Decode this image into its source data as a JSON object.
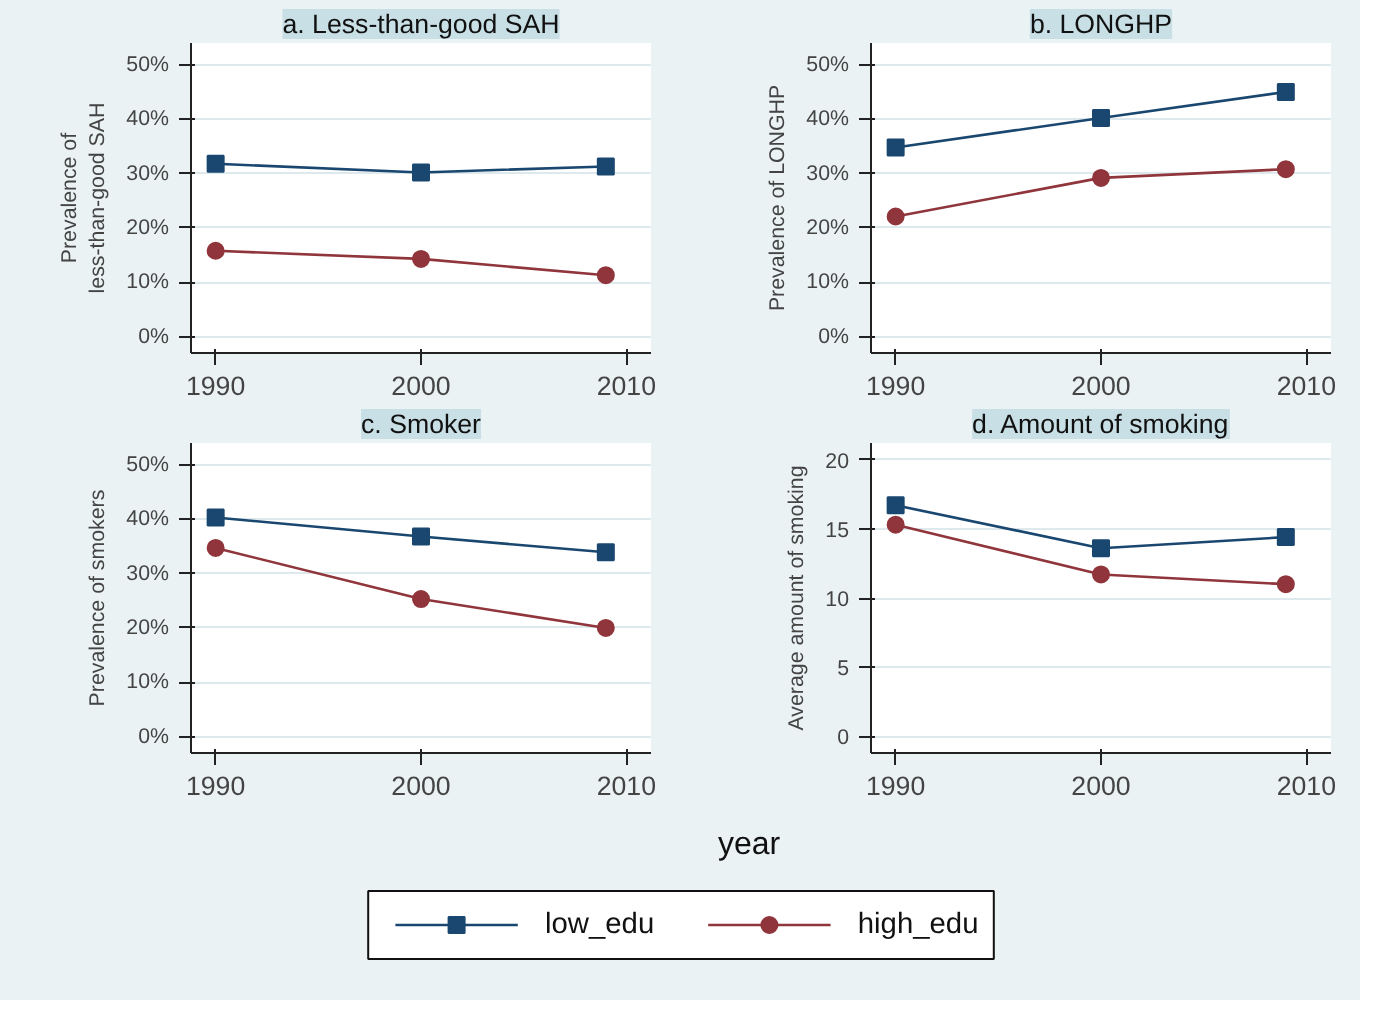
{
  "chart_data": [
    {
      "type": "line",
      "title": "a. Less-than-good SAH",
      "ylabel": "Prevalence of\nless-than-good SAH",
      "x": [
        1990,
        2000,
        2009
      ],
      "xlim": [
        1988.8,
        2011.2
      ],
      "xticks": [
        1990,
        2000,
        2010
      ],
      "ylim": [
        -3,
        54
      ],
      "yticks": [
        {
          "value": 0,
          "label": "0%"
        },
        {
          "value": 10,
          "label": "10%"
        },
        {
          "value": 20,
          "label": "20%"
        },
        {
          "value": 30,
          "label": "30%"
        },
        {
          "value": 40,
          "label": "40%"
        },
        {
          "value": 50,
          "label": "50%"
        }
      ],
      "grid": "y",
      "series": [
        {
          "color": "#1a476f",
          "marker": "square",
          "values": [
            31.8,
            30.2,
            31.3
          ]
        },
        {
          "color": "#90353b",
          "marker": "circle",
          "values": [
            15.8,
            14.3,
            11.3
          ]
        }
      ]
    },
    {
      "type": "line",
      "title": "b. LONGHP",
      "ylabel": "Prevalence of LONGHP",
      "x": [
        1990,
        2000,
        2009
      ],
      "xlim": [
        1988.8,
        2011.2
      ],
      "xticks": [
        1990,
        2000,
        2010
      ],
      "ylim": [
        -3,
        54
      ],
      "yticks": [
        {
          "value": 0,
          "label": "0%"
        },
        {
          "value": 10,
          "label": "10%"
        },
        {
          "value": 20,
          "label": "20%"
        },
        {
          "value": 30,
          "label": "30%"
        },
        {
          "value": 40,
          "label": "40%"
        },
        {
          "value": 50,
          "label": "50%"
        }
      ],
      "grid": "y",
      "series": [
        {
          "color": "#1a476f",
          "marker": "square",
          "values": [
            34.8,
            40.2,
            45.0
          ]
        },
        {
          "color": "#90353b",
          "marker": "circle",
          "values": [
            22.1,
            29.2,
            30.8
          ]
        }
      ]
    },
    {
      "type": "line",
      "title": "c. Smoker",
      "ylabel": "Prevalence of smokers",
      "x": [
        1990,
        2000,
        2009
      ],
      "xlim": [
        1988.8,
        2011.2
      ],
      "xticks": [
        1990,
        2000,
        2010
      ],
      "ylim": [
        -3,
        54
      ],
      "yticks": [
        {
          "value": 0,
          "label": "0%"
        },
        {
          "value": 10,
          "label": "10%"
        },
        {
          "value": 20,
          "label": "20%"
        },
        {
          "value": 30,
          "label": "30%"
        },
        {
          "value": 40,
          "label": "40%"
        },
        {
          "value": 50,
          "label": "50%"
        }
      ],
      "grid": "y",
      "series": [
        {
          "color": "#1a476f",
          "marker": "square",
          "values": [
            40.3,
            36.8,
            33.9
          ]
        },
        {
          "color": "#90353b",
          "marker": "circle",
          "values": [
            34.7,
            25.3,
            20.0
          ]
        }
      ]
    },
    {
      "type": "line",
      "title": "d. Amount of smoking",
      "ylabel": "Average amount of smoking",
      "xlabel": "year",
      "legend": "bottom",
      "x": [
        1990,
        2000,
        2009
      ],
      "xlim": [
        1988.8,
        2011.2
      ],
      "xticks": [
        1990,
        2000,
        2010
      ],
      "ylim": [
        -1.2,
        21.2
      ],
      "yticks": [
        0,
        5,
        10,
        15,
        20
      ],
      "grid": "y",
      "series": [
        {
          "name": "low_edu",
          "color": "#1a476f",
          "marker": "square",
          "values": [
            16.7,
            13.6,
            14.4
          ]
        },
        {
          "name": "high_edu",
          "color": "#90353b",
          "marker": "circle",
          "values": [
            15.3,
            11.7,
            11.0
          ]
        }
      ]
    }
  ]
}
